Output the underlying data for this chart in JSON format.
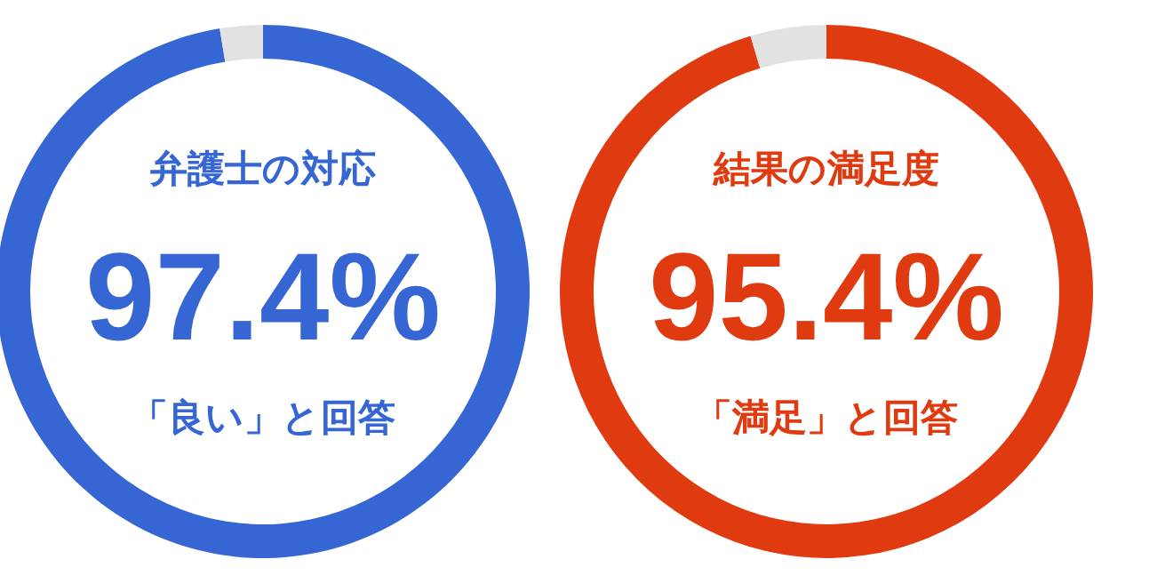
{
  "chart_data": [
    {
      "type": "donut",
      "title": "弁護士の対応",
      "categories": [
        null,
        null
      ],
      "values": [
        97.4,
        2.6
      ],
      "colors": [
        "#3566d3",
        "#e2e2e2"
      ],
      "value_labels": [
        "97.4%",
        null
      ],
      "annotations": [
        "「良い」と回答"
      ]
    },
    {
      "type": "donut",
      "title": "結果の満足度",
      "categories": [
        null,
        null
      ],
      "values": [
        95.4,
        4.6
      ],
      "colors": [
        "#e03a10",
        "#e2e2e2"
      ],
      "value_labels": [
        "95.4%",
        null
      ],
      "annotations": [
        "「満足」と回答"
      ]
    }
  ]
}
